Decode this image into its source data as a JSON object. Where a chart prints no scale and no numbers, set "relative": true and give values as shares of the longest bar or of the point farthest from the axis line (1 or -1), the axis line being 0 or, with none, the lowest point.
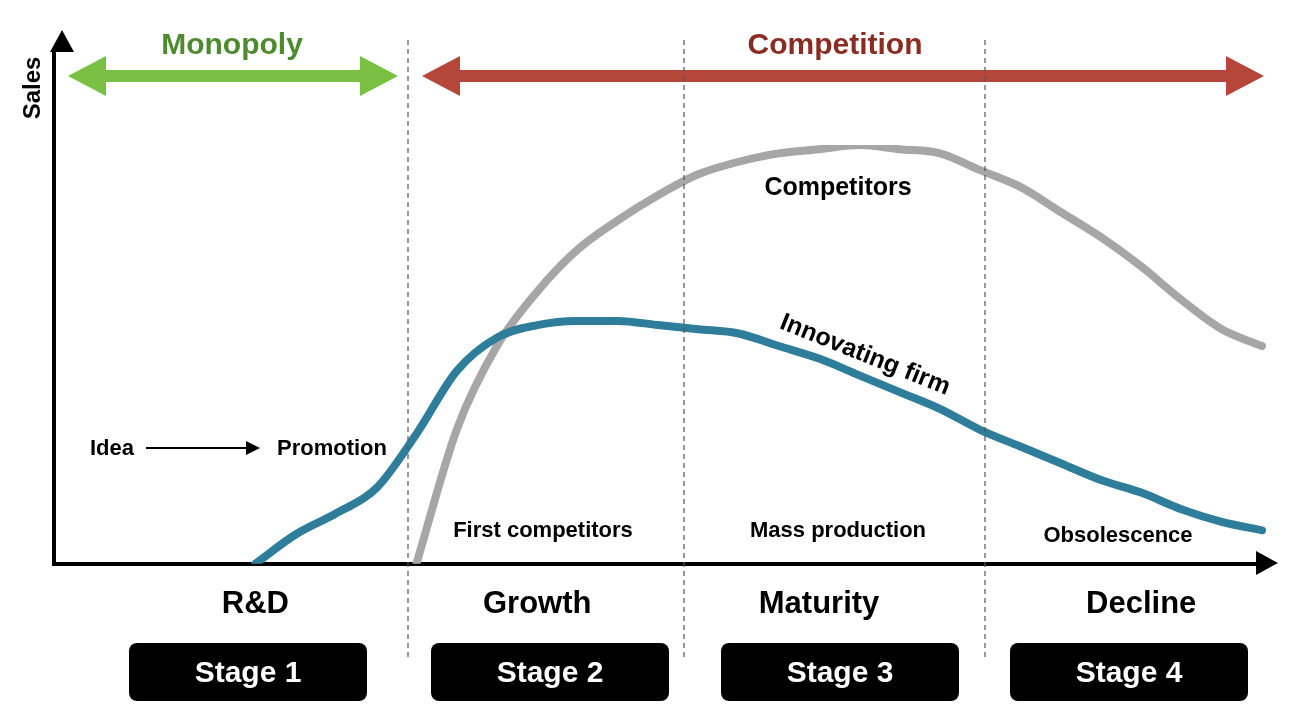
{
  "chart_data": {
    "type": "line",
    "relative": true,
    "ylabel": "Sales",
    "legend": false,
    "categories": [
      null,
      null,
      null,
      null,
      null,
      "R&D",
      null,
      null,
      null,
      null,
      null,
      null,
      "Growth",
      null,
      null,
      null,
      null,
      null,
      null,
      "Maturity",
      null,
      null,
      null,
      null,
      null,
      null,
      null,
      "Decline",
      null,
      null,
      null
    ],
    "series": [
      {
        "name": "Innovating firm",
        "color": "#2e7d9b",
        "values": [
          null,
          null,
          null,
          null,
          null,
          0,
          0.07,
          0.12,
          0.18,
          0.31,
          0.46,
          0.54,
          0.57,
          0.58,
          0.58,
          0.57,
          0.56,
          0.55,
          0.52,
          0.49,
          0.45,
          0.41,
          0.37,
          0.32,
          0.28,
          0.24,
          0.2,
          0.17,
          0.13,
          0.1,
          0.08
        ]
      },
      {
        "name": "Competitors",
        "color": "#a6a6a6",
        "values": [
          null,
          null,
          null,
          null,
          null,
          null,
          null,
          null,
          null,
          0,
          0.32,
          0.52,
          0.65,
          0.75,
          0.82,
          0.88,
          0.93,
          0.96,
          0.98,
          0.99,
          1,
          0.99,
          0.98,
          0.94,
          0.9,
          0.84,
          0.78,
          0.71,
          0.63,
          0.56,
          0.52
        ]
      }
    ],
    "annotations": [
      "Monopoly",
      "Competition",
      "Idea",
      "Promotion",
      "First competitors",
      "Mass production",
      "Obsolescence",
      "Stage 1",
      "Stage 2",
      "Stage 3",
      "Stage 4"
    ]
  }
}
